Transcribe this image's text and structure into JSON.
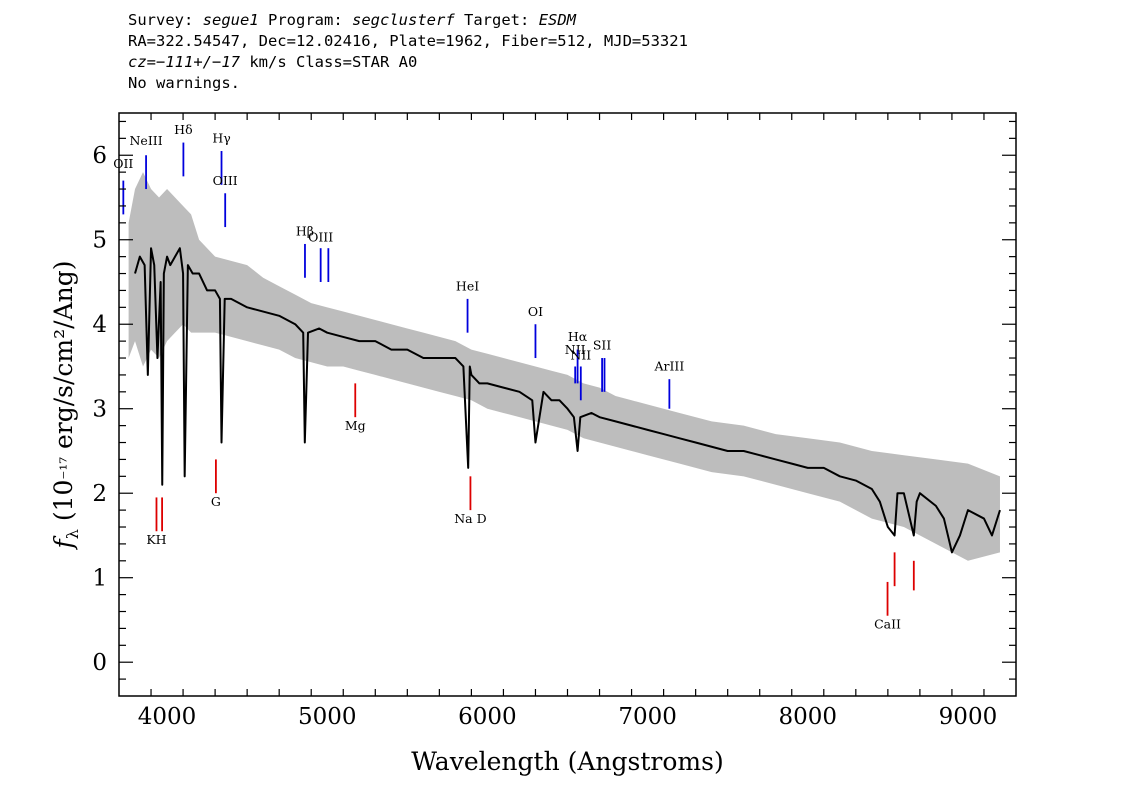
{
  "header": {
    "survey_label": "Survey:",
    "survey": "segue1",
    "program_label": "Program:",
    "program": "segclusterf",
    "target_label": "Target:",
    "target": "ESDM",
    "coords": "RA=322.54547, Dec=12.02416, Plate=1962, Fiber=512, MJD=53321",
    "cz_label": "cz=",
    "cz_value": "−111+/−17",
    "cz_rest": " km/s Class=STAR A0",
    "warnings": "No warnings."
  },
  "colors": {
    "flux": "#000000",
    "error_band": "#bdbdbd",
    "emission": "#0000dd",
    "absorption": "#dd0000"
  },
  "chart_data": {
    "type": "line",
    "xlabel": "Wavelength (Angstroms)",
    "ylabel": "fλ (10⁻¹⁷ erg/s/cm²/Ang)",
    "xlim": [
      3700,
      9300
    ],
    "ylim": [
      -0.4,
      6.5
    ],
    "xticks": [
      4000,
      5000,
      6000,
      7000,
      8000,
      9000
    ],
    "yticks": [
      0,
      1,
      2,
      3,
      4,
      5,
      6
    ],
    "grid": false,
    "series": [
      {
        "role": "flux",
        "x": [
          3800,
          3830,
          3860,
          3880,
          3900,
          3920,
          3940,
          3960,
          3970,
          3980,
          4000,
          4020,
          4050,
          4080,
          4100,
          4110,
          4130,
          4160,
          4200,
          4250,
          4300,
          4330,
          4340,
          4360,
          4400,
          4450,
          4500,
          4600,
          4700,
          4800,
          4850,
          4860,
          4880,
          4950,
          5000,
          5100,
          5200,
          5300,
          5400,
          5500,
          5600,
          5700,
          5800,
          5850,
          5880,
          5890,
          5900,
          5950,
          6000,
          6100,
          6200,
          6280,
          6300,
          6350,
          6400,
          6450,
          6500,
          6540,
          6563,
          6580,
          6650,
          6700,
          6800,
          6900,
          7000,
          7100,
          7200,
          7300,
          7400,
          7500,
          7600,
          7700,
          7800,
          7900,
          8000,
          8100,
          8200,
          8300,
          8400,
          8450,
          8500,
          8542,
          8560,
          8600,
          8662,
          8680,
          8700,
          8800,
          8850,
          8900,
          8950,
          9000,
          9100,
          9150,
          9200
        ],
        "y": [
          4.6,
          4.8,
          4.7,
          3.4,
          4.9,
          4.7,
          3.6,
          4.5,
          2.1,
          4.6,
          4.8,
          4.7,
          4.8,
          4.9,
          4.6,
          2.2,
          4.7,
          4.6,
          4.6,
          4.4,
          4.4,
          4.3,
          2.6,
          4.3,
          4.3,
          4.25,
          4.2,
          4.15,
          4.1,
          4.0,
          3.9,
          2.6,
          3.9,
          3.95,
          3.9,
          3.85,
          3.8,
          3.8,
          3.7,
          3.7,
          3.6,
          3.6,
          3.6,
          3.5,
          2.3,
          3.5,
          3.4,
          3.3,
          3.3,
          3.25,
          3.2,
          3.1,
          2.6,
          3.2,
          3.1,
          3.1,
          3.0,
          2.9,
          2.5,
          2.9,
          2.95,
          2.9,
          2.85,
          2.8,
          2.75,
          2.7,
          2.65,
          2.6,
          2.55,
          2.5,
          2.5,
          2.45,
          2.4,
          2.35,
          2.3,
          2.3,
          2.2,
          2.15,
          2.05,
          1.9,
          1.6,
          1.5,
          2.0,
          2.0,
          1.5,
          1.9,
          2.0,
          1.85,
          1.7,
          1.3,
          1.5,
          1.8,
          1.7,
          1.5,
          1.8
        ]
      },
      {
        "role": "error_band",
        "x": [
          3760,
          3800,
          3850,
          3900,
          3950,
          4000,
          4050,
          4100,
          4150,
          4200,
          4300,
          4400,
          4500,
          4600,
          4700,
          4800,
          4900,
          5000,
          5100,
          5200,
          5300,
          5400,
          5500,
          5600,
          5700,
          5800,
          5900,
          6000,
          6100,
          6200,
          6300,
          6400,
          6500,
          6600,
          6700,
          6800,
          6900,
          7000,
          7200,
          7400,
          7600,
          7800,
          8000,
          8200,
          8400,
          8600,
          8800,
          9000,
          9200
        ],
        "upper": [
          5.2,
          5.6,
          5.8,
          5.6,
          5.5,
          5.6,
          5.5,
          5.4,
          5.3,
          5.0,
          4.8,
          4.75,
          4.7,
          4.55,
          4.45,
          4.35,
          4.25,
          4.2,
          4.15,
          4.1,
          4.05,
          4.0,
          3.95,
          3.9,
          3.85,
          3.8,
          3.7,
          3.65,
          3.6,
          3.55,
          3.5,
          3.45,
          3.4,
          3.3,
          3.25,
          3.15,
          3.1,
          3.05,
          2.95,
          2.85,
          2.8,
          2.7,
          2.65,
          2.6,
          2.5,
          2.45,
          2.4,
          2.35,
          2.2
        ],
        "lower": [
          3.6,
          3.8,
          3.5,
          3.7,
          3.6,
          3.8,
          3.9,
          4.0,
          3.9,
          3.9,
          3.9,
          3.85,
          3.8,
          3.75,
          3.7,
          3.6,
          3.55,
          3.5,
          3.5,
          3.45,
          3.4,
          3.35,
          3.3,
          3.25,
          3.2,
          3.15,
          3.1,
          3.0,
          2.95,
          2.9,
          2.85,
          2.8,
          2.75,
          2.65,
          2.6,
          2.55,
          2.5,
          2.45,
          2.35,
          2.25,
          2.2,
          2.1,
          2.0,
          1.9,
          1.7,
          1.6,
          1.4,
          1.2,
          1.3
        ]
      }
    ],
    "emission_lines": [
      {
        "label": "OII",
        "x": 3727,
        "y0": 5.3,
        "y1": 5.7,
        "label_y": 5.85
      },
      {
        "label": "NeIII",
        "x": 3869,
        "y0": 5.6,
        "y1": 6.0,
        "label_y": 6.12
      },
      {
        "label": "Hδ",
        "x": 4102,
        "y0": 5.75,
        "y1": 6.15,
        "label_y": 6.25
      },
      {
        "label": "Hγ",
        "x": 4340,
        "y0": 5.65,
        "y1": 6.05,
        "label_y": 6.15
      },
      {
        "label": "OIII",
        "x": 4363,
        "y0": 5.15,
        "y1": 5.55,
        "label_y": 5.65
      },
      {
        "label": "Hβ",
        "x": 4861,
        "y0": 4.55,
        "y1": 4.95,
        "label_y": 5.05
      },
      {
        "label": "OIII",
        "x": 4959,
        "y0": 4.5,
        "y1": 4.9,
        "label_y": 4.98
      },
      {
        "label": "",
        "x": 5007,
        "y0": 4.5,
        "y1": 4.9,
        "label_y": 4.98
      },
      {
        "label": "HeI",
        "x": 5876,
        "y0": 3.9,
        "y1": 4.3,
        "label_y": 4.4
      },
      {
        "label": "OI",
        "x": 6300,
        "y0": 3.6,
        "y1": 4.0,
        "label_y": 4.1
      },
      {
        "label": "NII",
        "x": 6548,
        "y0": 3.3,
        "y1": 3.5,
        "label_y": 3.65
      },
      {
        "label": "Hα",
        "x": 6563,
        "y0": 3.3,
        "y1": 3.7,
        "label_y": 3.8
      },
      {
        "label": "NII",
        "x": 6583,
        "y0": 3.1,
        "y1": 3.5,
        "label_y": 3.58
      },
      {
        "label": "SII",
        "x": 6716,
        "y0": 3.2,
        "y1": 3.6,
        "label_y": 3.7
      },
      {
        "label": "",
        "x": 6731,
        "y0": 3.2,
        "y1": 3.6,
        "label_y": 3.7
      },
      {
        "label": "ArIII",
        "x": 7136,
        "y0": 3.0,
        "y1": 3.35,
        "label_y": 3.45
      }
    ],
    "absorption_lines": [
      {
        "label": "KH",
        "x": 3934,
        "y0": 1.55,
        "y1": 1.95,
        "label_y": 1.4
      },
      {
        "label": "",
        "x": 3969,
        "y0": 1.55,
        "y1": 1.95,
        "label_y": 1.4
      },
      {
        "label": "G",
        "x": 4305,
        "y0": 2.0,
        "y1": 2.4,
        "label_y": 1.85
      },
      {
        "label": "Mg",
        "x": 5175,
        "y0": 2.9,
        "y1": 3.3,
        "label_y": 2.75
      },
      {
        "label": "Na D",
        "x": 5894,
        "y0": 1.8,
        "y1": 2.2,
        "label_y": 1.65
      },
      {
        "label": "CaII",
        "x": 8498,
        "y0": 0.55,
        "y1": 0.95,
        "label_y": 0.4
      },
      {
        "label": "",
        "x": 8542,
        "y0": 0.9,
        "y1": 1.3,
        "label_y": 0.4
      },
      {
        "label": "",
        "x": 8662,
        "y0": 0.85,
        "y1": 1.2,
        "label_y": 0.4
      }
    ]
  }
}
